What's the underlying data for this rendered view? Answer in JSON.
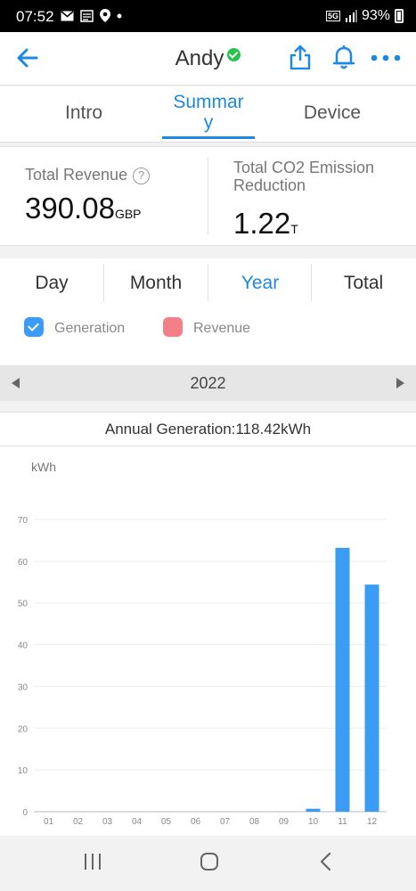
{
  "status_bar": {
    "time": "07:52",
    "network": "5G",
    "battery": "93%",
    "icons": [
      "mail-icon",
      "news-icon",
      "location-icon",
      "dot-icon",
      "signal-icon",
      "battery-icon"
    ]
  },
  "header": {
    "title": "Andy",
    "verified": true,
    "icons": [
      "back-arrow-icon",
      "share-icon",
      "bell-icon",
      "more-icon"
    ],
    "accent": "#1e88e5"
  },
  "tabs": [
    {
      "label": "Intro",
      "active": false
    },
    {
      "label": "Summar\ny",
      "active": true
    },
    {
      "label": "Device",
      "active": false
    }
  ],
  "summary": {
    "revenue_label": "Total Revenue",
    "revenue_value": "390.08",
    "revenue_unit": "GBP",
    "co2_label": "Total CO2 Emission Reduction",
    "co2_value": "1.22",
    "co2_unit": "T"
  },
  "periods": [
    {
      "label": "Day",
      "active": false
    },
    {
      "label": "Month",
      "active": false
    },
    {
      "label": "Year",
      "active": true
    },
    {
      "label": "Total",
      "active": false
    }
  ],
  "legend": {
    "generation": {
      "label": "Generation",
      "checked": true,
      "color": "#3a9cf5"
    },
    "revenue": {
      "label": "Revenue",
      "checked": false,
      "color": "#f57f89"
    }
  },
  "year_nav": {
    "year": "2022"
  },
  "annual_generation": "Annual Generation:118.42kWh",
  "chart_data": {
    "type": "bar",
    "ylabel": "kWh",
    "categories": [
      "01",
      "02",
      "03",
      "04",
      "05",
      "06",
      "07",
      "08",
      "09",
      "10",
      "11",
      "12"
    ],
    "values": [
      0,
      0,
      0,
      0,
      0,
      0,
      0,
      0,
      0,
      0.7,
      63.2,
      54.4
    ],
    "yticks": [
      0,
      10,
      20,
      30,
      40,
      50,
      60,
      70
    ],
    "ylim": [
      0,
      70
    ],
    "grid": true,
    "color": "#3a9cf5"
  }
}
